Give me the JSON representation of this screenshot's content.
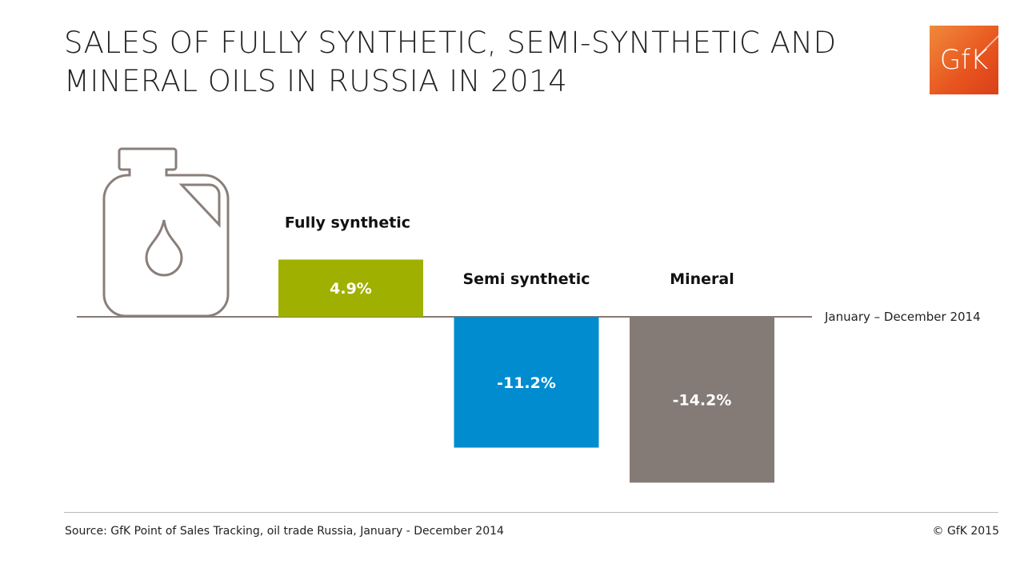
{
  "title_line1": "SALES OF FULLY SYNTHETIC, SEMI-SYNTHETIC AND",
  "title_line2": "MINERAL OILS IN RUSSIA IN 2014",
  "logo_text": "GfK",
  "source": "Source: GfK Point of Sales Tracking, oil trade Russia, January - December 2014",
  "copyright": "© GfK 2015",
  "chart_data": {
    "type": "bar",
    "title": "Sales of fully synthetic, semi-synthetic and mineral oils in Russia in 2014",
    "period_label": "January – December 2014",
    "categories": [
      "Fully synthetic",
      "Semi synthetic",
      "Mineral"
    ],
    "values": [
      4.9,
      -11.2,
      -14.2
    ],
    "value_labels": [
      "4.9%",
      "-11.2%",
      "-14.2%"
    ],
    "unit": "%",
    "colors": [
      "#a0b000",
      "#008ccf",
      "#857b76"
    ],
    "baseline_color": "#857b76",
    "icon": "oil-canister-icon"
  }
}
